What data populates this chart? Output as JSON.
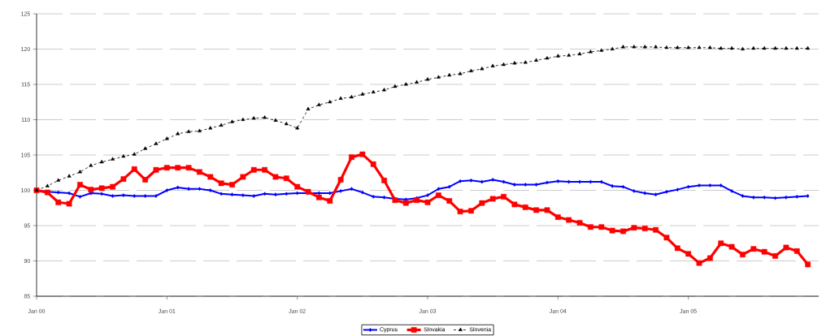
{
  "chart_data": {
    "type": "line",
    "x": [
      "2000-01",
      "2000-02",
      "2000-03",
      "2000-04",
      "2000-05",
      "2000-06",
      "2000-07",
      "2000-08",
      "2000-09",
      "2000-10",
      "2000-11",
      "2000-12",
      "2001-01",
      "2001-02",
      "2001-03",
      "2001-04",
      "2001-05",
      "2001-06",
      "2001-07",
      "2001-08",
      "2001-09",
      "2001-10",
      "2001-11",
      "2001-12",
      "2002-01",
      "2002-02",
      "2002-03",
      "2002-04",
      "2002-05",
      "2002-06",
      "2002-07",
      "2002-08",
      "2002-09",
      "2002-10",
      "2002-11",
      "2002-12",
      "2003-01",
      "2003-02",
      "2003-03",
      "2003-04",
      "2003-05",
      "2003-06",
      "2003-07",
      "2003-08",
      "2003-09",
      "2003-10",
      "2003-11",
      "2003-12",
      "2004-01",
      "2004-02",
      "2004-03",
      "2004-04",
      "2004-05",
      "2004-06",
      "2004-07",
      "2004-08",
      "2004-09",
      "2004-10",
      "2004-11",
      "2004-12",
      "2005-01",
      "2005-02",
      "2005-03",
      "2005-04",
      "2005-05",
      "2005-06",
      "2005-07",
      "2005-08",
      "2005-09",
      "2005-10",
      "2005-11",
      "2005-12"
    ],
    "series": [
      {
        "name": "Cyprus",
        "color": "#0000ff",
        "marker": "diamond",
        "line_style": "solid",
        "values": [
          100.0,
          99.8,
          99.7,
          99.6,
          99.1,
          99.6,
          99.5,
          99.2,
          99.3,
          99.2,
          99.2,
          99.2,
          100.0,
          100.4,
          100.2,
          100.2,
          100.0,
          99.5,
          99.4,
          99.3,
          99.2,
          99.5,
          99.4,
          99.5,
          99.6,
          99.6,
          99.6,
          99.6,
          99.9,
          100.2,
          99.7,
          99.1,
          99.0,
          98.8,
          98.7,
          98.9,
          99.3,
          100.2,
          100.5,
          101.3,
          101.4,
          101.2,
          101.5,
          101.2,
          100.8,
          100.8,
          100.8,
          101.1,
          101.3,
          101.2,
          101.2,
          101.2,
          101.2,
          100.6,
          100.5,
          99.9,
          99.6,
          99.4,
          99.8,
          100.1,
          100.5,
          100.7,
          100.7,
          100.7,
          99.9,
          99.2,
          99.0,
          99.0,
          98.9,
          99.0,
          99.1,
          99.2
        ]
      },
      {
        "name": "Slovakia",
        "color": "#ff0000",
        "marker": "square",
        "line_style": "solid",
        "values": [
          100.0,
          99.7,
          98.3,
          98.1,
          100.8,
          100.1,
          100.3,
          100.5,
          101.6,
          103.0,
          101.5,
          102.9,
          103.2,
          103.2,
          103.2,
          102.6,
          101.9,
          101.0,
          100.8,
          101.9,
          102.9,
          102.9,
          101.9,
          101.7,
          100.5,
          99.8,
          99.0,
          98.5,
          101.5,
          104.7,
          105.1,
          103.7,
          101.4,
          98.6,
          98.2,
          98.6,
          98.3,
          99.3,
          98.5,
          97.0,
          97.1,
          98.2,
          98.8,
          99.1,
          98.0,
          97.6,
          97.2,
          97.2,
          96.2,
          95.8,
          95.4,
          94.8,
          94.8,
          94.3,
          94.2,
          94.7,
          94.6,
          94.4,
          93.3,
          91.8,
          91.0,
          89.7,
          90.4,
          92.5,
          92.0,
          90.9,
          91.7,
          91.3,
          90.7,
          91.9,
          91.4,
          89.5
        ]
      },
      {
        "name": "Slovenia",
        "color": "#000000",
        "marker": "triangle",
        "line_style": "dashed",
        "values": [
          100.0,
          100.6,
          101.4,
          102.0,
          102.6,
          103.5,
          104.0,
          104.4,
          104.8,
          105.1,
          105.9,
          106.6,
          107.3,
          108.0,
          108.3,
          108.4,
          108.8,
          109.2,
          109.7,
          110.0,
          110.2,
          110.3,
          109.9,
          109.4,
          108.8,
          111.5,
          112.1,
          112.5,
          113.0,
          113.2,
          113.6,
          113.9,
          114.2,
          114.7,
          115.0,
          115.3,
          115.7,
          116.0,
          116.3,
          116.5,
          116.9,
          117.2,
          117.6,
          117.8,
          118.0,
          118.1,
          118.4,
          118.7,
          119.0,
          119.1,
          119.3,
          119.6,
          119.8,
          120.0,
          120.3,
          120.3,
          120.3,
          120.3,
          120.2,
          120.2,
          120.2,
          120.2,
          120.2,
          120.1,
          120.1,
          120.0,
          120.1,
          120.1,
          120.1,
          120.1,
          120.1,
          120.1
        ]
      }
    ],
    "xlim": [
      "2000-01",
      "2006-01"
    ],
    "xticks": [
      {
        "value": "2000-01",
        "label": "Jan 00"
      },
      {
        "value": "2001-01",
        "label": "Jan 01"
      },
      {
        "value": "2002-01",
        "label": "Jan 02"
      },
      {
        "value": "2003-01",
        "label": "Jan 03"
      },
      {
        "value": "2004-01",
        "label": "Jan 04"
      },
      {
        "value": "2005-01",
        "label": "Jan 05"
      }
    ],
    "ylim": [
      85,
      125
    ],
    "yticks": [
      85,
      90,
      95,
      100,
      105,
      110,
      115,
      120,
      125
    ],
    "grid": "y",
    "legend": "bottom"
  }
}
